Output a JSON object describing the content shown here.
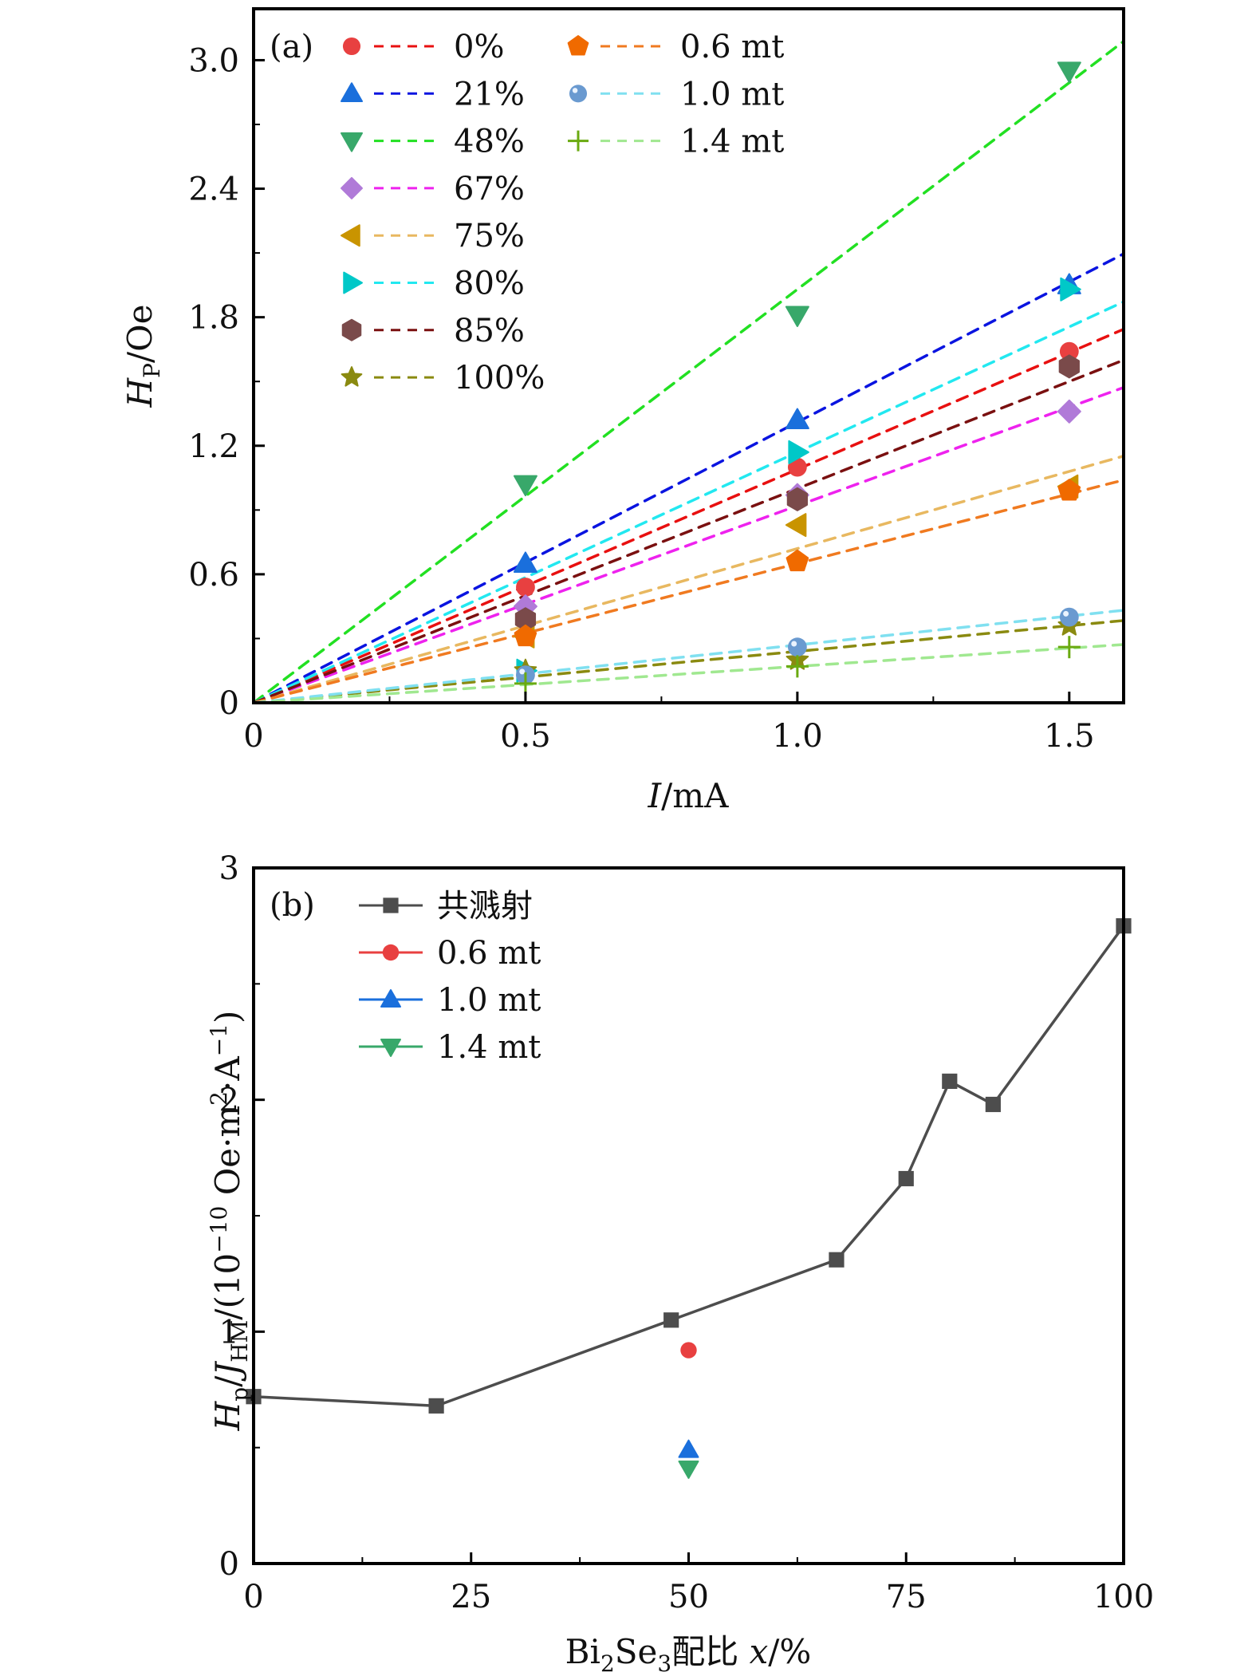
{
  "chart_data": [
    {
      "type": "scatter",
      "panel_label": "(a)",
      "xlabel_italic": "I",
      "xlabel_rest": "/mA",
      "ylabel_italic": "H",
      "ylabel_sub": "P",
      "ylabel_rest": "/Oe",
      "xlim": [
        0,
        1.6
      ],
      "ylim": [
        0,
        3.24
      ],
      "xticks": [
        0,
        0.5,
        1.0,
        1.5
      ],
      "xtick_labels": [
        "0",
        "0.5",
        "1.0",
        "1.5"
      ],
      "yticks": [
        0,
        0.6,
        1.2,
        1.8,
        2.4,
        3.0
      ],
      "ytick_labels": [
        "0",
        "0.6",
        "1.2",
        "1.8",
        "2.4",
        "3.0"
      ],
      "x": [
        0.5,
        1.0,
        1.5
      ],
      "legend_position": "top-left",
      "series": [
        {
          "name": "0%",
          "marker": "circle",
          "color": "#e84040",
          "line_color": "#e81010",
          "values": [
            0.54,
            1.1,
            1.64
          ],
          "fit_slope": 1.09
        },
        {
          "name": "21%",
          "marker": "triangle-up",
          "color": "#1a6fdc",
          "line_color": "#0a14e0",
          "values": [
            0.65,
            1.32,
            1.95
          ],
          "fit_slope": 1.31
        },
        {
          "name": "48%",
          "marker": "triangle-down",
          "color": "#38a86a",
          "line_color": "#22e022",
          "values": [
            1.02,
            1.81,
            2.95
          ],
          "fit_slope": 1.93
        },
        {
          "name": "67%",
          "marker": "diamond",
          "color": "#b07ad8",
          "line_color": "#ee22ee",
          "values": [
            0.45,
            0.97,
            1.36
          ],
          "fit_slope": 0.92
        },
        {
          "name": "75%",
          "marker": "triangle-left",
          "color": "#c99400",
          "line_color": "#e8b860",
          "values": [
            0.31,
            0.83,
            1.01
          ],
          "fit_slope": 0.72
        },
        {
          "name": "80%",
          "marker": "triangle-right",
          "color": "#00c8c8",
          "line_color": "#22e8f0",
          "values": [
            0.15,
            1.17,
            1.93
          ],
          "fit_slope": 1.17
        },
        {
          "name": "85%",
          "marker": "hexagon",
          "color": "#7a4a4a",
          "line_color": "#7a1010",
          "values": [
            0.39,
            0.95,
            1.57
          ],
          "fit_slope": 1.0
        },
        {
          "name": "100%",
          "marker": "star",
          "color": "#8a8a10",
          "line_color": "#8a8a10",
          "values": [
            0.15,
            0.2,
            0.36
          ],
          "fit_slope": 0.24
        },
        {
          "name": "0.6 mt",
          "marker": "pentagon",
          "color": "#f06a00",
          "line_color": "#f07a20",
          "values": [
            0.31,
            0.66,
            0.99
          ],
          "fit_slope": 0.65
        },
        {
          "name": "1.0 mt",
          "marker": "sphere",
          "color": "#6a9ad0",
          "line_color": "#80e0f0",
          "values": [
            0.13,
            0.26,
            0.4
          ],
          "fit_slope": 0.27
        },
        {
          "name": "1.4 mt",
          "marker": "plus",
          "color": "#6aaa10",
          "line_color": "#a0e890",
          "values": [
            0.09,
            0.17,
            0.26
          ],
          "fit_slope": 0.17
        }
      ]
    },
    {
      "type": "line",
      "panel_label": "(b)",
      "xlabel": "Bi₂Se₃配比 x/%",
      "xlabel_parts": [
        "Bi",
        "2",
        "Se",
        "3",
        "配比 ",
        "x",
        "/%"
      ],
      "ylabel_parts": [
        "H",
        "p",
        "/",
        "J",
        "HM",
        "/(10",
        "−10",
        " Oe·m",
        "2",
        "·A",
        "−1",
        ")"
      ],
      "xlim": [
        0,
        100
      ],
      "ylim": [
        0,
        3
      ],
      "xticks": [
        0,
        25,
        50,
        75,
        100
      ],
      "xtick_labels": [
        "0",
        "25",
        "50",
        "75",
        "100"
      ],
      "yticks": [
        0,
        1,
        2,
        3
      ],
      "ytick_labels": [
        "0",
        "1",
        "2",
        "3"
      ],
      "legend_position": "top-left",
      "series": [
        {
          "name": "共溅射",
          "marker": "square",
          "color": "#4d4d4d",
          "connected": true,
          "x": [
            0,
            21,
            48,
            67,
            75,
            80,
            85,
            100
          ],
          "values": [
            0.72,
            0.68,
            1.05,
            1.31,
            1.66,
            2.08,
            1.98,
            2.75
          ]
        },
        {
          "name": "0.6 mt",
          "marker": "circle",
          "color": "#e84040",
          "connected": false,
          "x": [
            50
          ],
          "values": [
            0.92
          ]
        },
        {
          "name": "1.0 mt",
          "marker": "triangle-up",
          "color": "#1a6fdc",
          "connected": false,
          "x": [
            50
          ],
          "values": [
            0.49
          ]
        },
        {
          "name": "1.4 mt",
          "marker": "triangle-down",
          "color": "#38a86a",
          "connected": false,
          "x": [
            50
          ],
          "values": [
            0.41
          ]
        }
      ]
    }
  ]
}
